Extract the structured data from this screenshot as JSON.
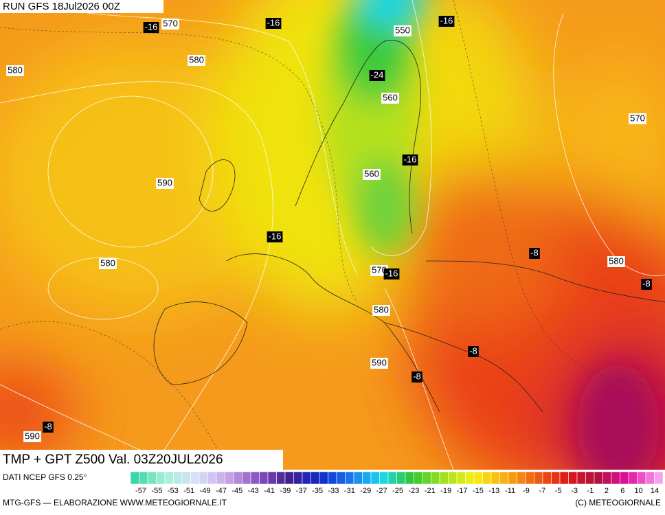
{
  "header": {
    "run": "RUN GFS 18Jul2026 00Z"
  },
  "labels": [
    -16,
    570,
    -16,
    550,
    -16,
    580,
    580,
    -24,
    560,
    570,
    -16,
    560,
    590,
    -16,
    -8,
    580,
    580,
    570,
    -16,
    -8,
    580,
    -8,
    590,
    -8,
    -8,
    590
  ],
  "footer": {
    "title": "TMP + GPT Z500 Val. 03Z20JUL2026",
    "source": "DATI NCEP GFS 0.25°",
    "credit": "MTG-GFS — ELABORAZIONE WWW.METEOGIORNALE.IT",
    "copyright": "(C) METEOGIORNALE"
  },
  "scale": [
    -57,
    -55,
    -53,
    -51,
    -49,
    -47,
    -45,
    -43,
    -41,
    -39,
    -37,
    -35,
    -33,
    -31,
    -29,
    -27,
    -25,
    -23,
    -21,
    -19,
    -17,
    -15,
    -13,
    -11,
    -9,
    -7,
    -5,
    -3,
    -1,
    2,
    6,
    10,
    14
  ]
}
